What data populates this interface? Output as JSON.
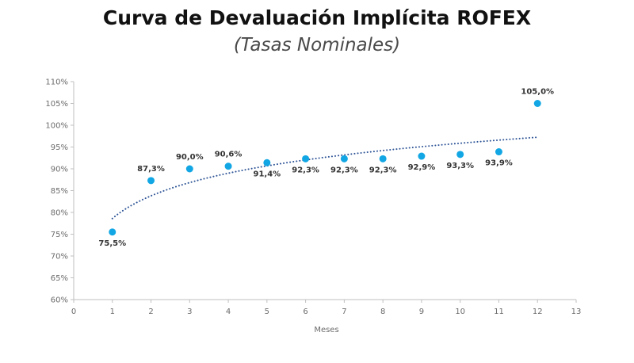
{
  "chart_data": {
    "type": "scatter",
    "title": "Curva de Devaluación Implícita ROFEX",
    "subtitle": "(Tasas Nominales)",
    "xlabel": "Meses",
    "ylabel": "",
    "xlim": [
      0,
      13
    ],
    "ylim": [
      60,
      110
    ],
    "x_ticks": [
      "0",
      "1",
      "2",
      "3",
      "4",
      "5",
      "6",
      "7",
      "8",
      "9",
      "10",
      "11",
      "12",
      "13"
    ],
    "y_ticks": [
      "60%",
      "65%",
      "70%",
      "75%",
      "80%",
      "85%",
      "90%",
      "95%",
      "100%",
      "105%",
      "110%"
    ],
    "x": [
      1,
      2,
      3,
      4,
      5,
      6,
      7,
      8,
      9,
      10,
      11,
      12
    ],
    "values": [
      75.5,
      87.3,
      90.0,
      90.6,
      91.4,
      92.3,
      92.3,
      92.3,
      92.9,
      93.3,
      93.9,
      105.0
    ],
    "labels": [
      "75,5%",
      "87,3%",
      "90,0%",
      "90,6%",
      "91,4%",
      "92,3%",
      "92,3%",
      "92,3%",
      "92,9%",
      "93,3%",
      "93,9%",
      "105,0%"
    ],
    "label_positions": [
      "below",
      "above",
      "above",
      "above",
      "below",
      "below",
      "below",
      "below",
      "below",
      "below",
      "below",
      "above"
    ],
    "trendline": {
      "type": "logarithmic",
      "style": "dotted",
      "a": 78.6,
      "b": 7.5
    },
    "colors": {
      "points": "#12a7e4",
      "trend": "#2f5597",
      "axis": "#bfbfbf"
    }
  }
}
